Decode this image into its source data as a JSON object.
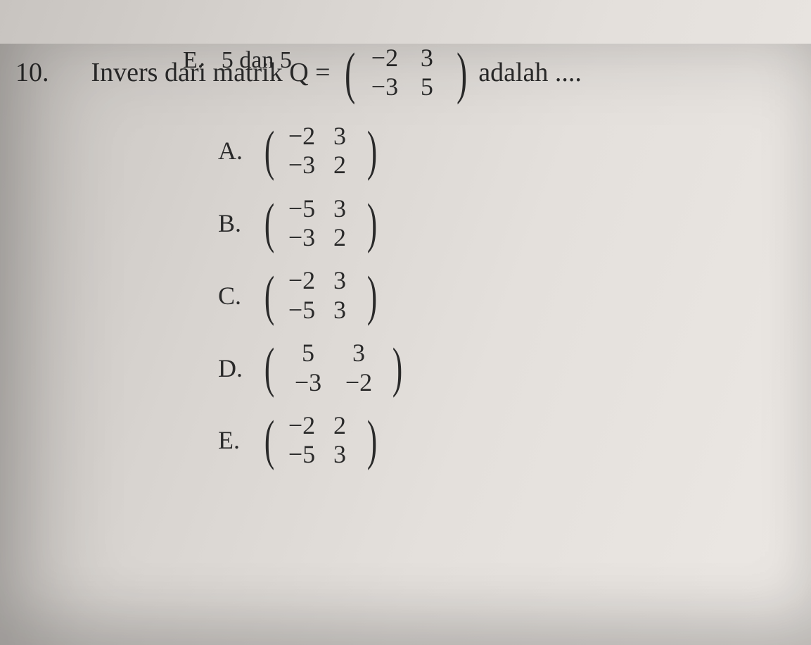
{
  "page": {
    "background_gradient": [
      "#c8c4c0",
      "#d8d4d0",
      "#e4e0dc",
      "#ece8e4"
    ],
    "text_color": "#2a2a2a",
    "font_family": "Times New Roman",
    "body_fontsize": 38
  },
  "prev_question_fragment": {
    "label": "E.",
    "text": "5 dan 5"
  },
  "question": {
    "number": "10.",
    "text_before": "Invers dari matrik Q =",
    "matrix": {
      "rows": [
        [
          "−2",
          "3"
        ],
        [
          "−3",
          "5"
        ]
      ],
      "cell_fontsize": 36,
      "paren_fontsize": 82
    },
    "text_after": "adalah ...."
  },
  "answers": [
    {
      "label": "A.",
      "matrix": {
        "rows": [
          [
            "−2",
            "3"
          ],
          [
            "−3",
            "2"
          ]
        ]
      }
    },
    {
      "label": "B.",
      "matrix": {
        "rows": [
          [
            "−5",
            "3"
          ],
          [
            "−3",
            "2"
          ]
        ]
      }
    },
    {
      "label": "C.",
      "matrix": {
        "rows": [
          [
            "−2",
            "3"
          ],
          [
            "−5",
            "3"
          ]
        ]
      }
    },
    {
      "label": "D.",
      "matrix": {
        "rows": [
          [
            "5",
            "3"
          ],
          [
            "−3",
            "−2"
          ]
        ],
        "wide": true
      }
    },
    {
      "label": "E.",
      "matrix": {
        "rows": [
          [
            "−2",
            "2"
          ],
          [
            "−5",
            "3"
          ]
        ]
      }
    }
  ],
  "matrix_style": {
    "cell_fontsize": 36,
    "paren_fontsize": 78,
    "cell_min_width": 54
  }
}
